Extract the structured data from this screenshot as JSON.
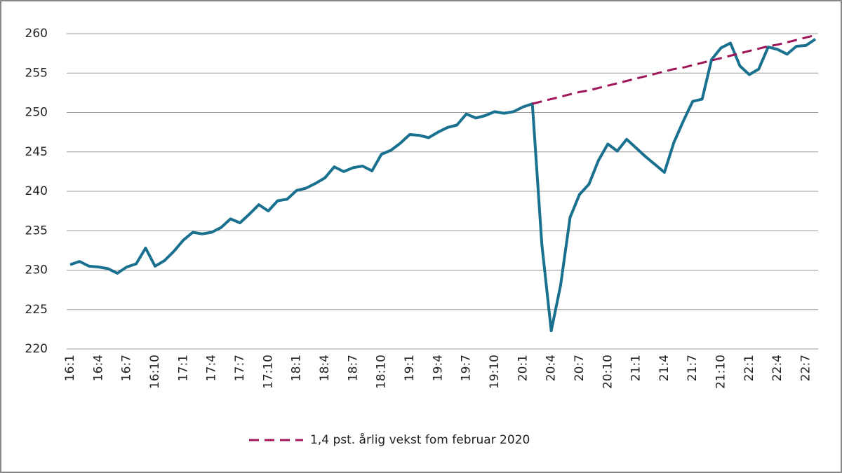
{
  "chart_data": {
    "type": "line",
    "categories": [
      "16:1",
      null,
      null,
      "16:4",
      null,
      null,
      "16:7",
      null,
      null,
      "16:10",
      null,
      null,
      "17:1",
      null,
      null,
      "17:4",
      null,
      null,
      "17:7",
      null,
      null,
      "17:10",
      null,
      null,
      "18:1",
      null,
      null,
      "18:4",
      null,
      null,
      "18:7",
      null,
      null,
      "18:10",
      null,
      null,
      "19:1",
      null,
      null,
      "19:4",
      null,
      null,
      "19:7",
      null,
      null,
      "19:10",
      null,
      null,
      "20:1",
      null,
      null,
      "20:4",
      null,
      null,
      "20:7",
      null,
      null,
      "20:10",
      null,
      null,
      "21:1",
      null,
      null,
      "21:4",
      null,
      null,
      "21:7",
      null,
      null,
      "21:10",
      null,
      null,
      "22:1",
      null,
      null,
      "22:4",
      null,
      null,
      "22:7",
      null
    ],
    "series": [
      {
        "color": "#19708f",
        "dash": false,
        "values": [
          230.7,
          231.1,
          230.5,
          230.4,
          230.2,
          229.6,
          230.4,
          230.8,
          232.8,
          230.5,
          231.2,
          232.4,
          233.8,
          234.8,
          234.6,
          234.8,
          235.4,
          236.5,
          236.0,
          237.1,
          238.3,
          237.5,
          238.8,
          239.0,
          240.1,
          240.4,
          241.0,
          241.7,
          243.1,
          242.5,
          243.0,
          243.2,
          242.6,
          244.7,
          245.2,
          246.1,
          247.2,
          247.1,
          246.8,
          247.5,
          248.1,
          248.4,
          249.8,
          249.3,
          249.6,
          250.1,
          249.9,
          250.1,
          250.7,
          251.1,
          233.3,
          222.3,
          228.1,
          236.7,
          239.6,
          240.9,
          243.9,
          246.0,
          245.1,
          246.6,
          245.5,
          244.4,
          243.4,
          242.4,
          246.2,
          248.9,
          251.4,
          251.7,
          256.7,
          258.2,
          258.8,
          255.9,
          254.8,
          255.5,
          258.3,
          258.0,
          257.4,
          258.4,
          258.5,
          259.3
        ]
      },
      {
        "name": "1,4 pst. årlig vekst fom februar 2020",
        "color": "#a0145a",
        "dash": true,
        "values": [
          null,
          null,
          null,
          null,
          null,
          null,
          null,
          null,
          null,
          null,
          null,
          null,
          null,
          null,
          null,
          null,
          null,
          null,
          null,
          null,
          null,
          null,
          null,
          null,
          null,
          null,
          null,
          null,
          null,
          null,
          null,
          null,
          null,
          null,
          null,
          null,
          null,
          null,
          null,
          null,
          null,
          null,
          null,
          null,
          null,
          null,
          null,
          null,
          null,
          251.1,
          251.4,
          251.7,
          252.0,
          252.3,
          252.6,
          252.8,
          253.1,
          253.4,
          253.7,
          254.0,
          254.3,
          254.6,
          254.9,
          255.2,
          255.5,
          255.7,
          256.0,
          256.3,
          256.6,
          256.9,
          257.2,
          257.5,
          257.8,
          258.1,
          258.4,
          258.6,
          258.9,
          259.2,
          259.5,
          259.8
        ]
      }
    ],
    "ylim": [
      220,
      260
    ],
    "yticks": [
      220,
      225,
      230,
      235,
      240,
      245,
      250,
      255,
      260
    ],
    "grid": true,
    "legend": "bottom"
  }
}
